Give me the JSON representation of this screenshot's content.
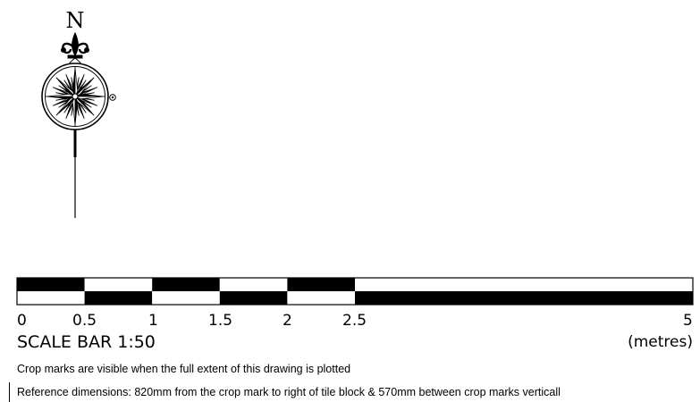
{
  "north_arrow": {
    "label": "N",
    "icon": "compass-rose-icon"
  },
  "scale_bar": {
    "title": "SCALE BAR 1:50",
    "units": "(metres)",
    "ticks": [
      "0",
      "0.5",
      "1",
      "1.5",
      "2",
      "2.5",
      "5"
    ],
    "colors": {
      "fill": "#000000",
      "background": "#ffffff"
    }
  },
  "notes": {
    "crop_visibility": "Crop marks are visible when the full extent of this drawing is plotted",
    "reference_dimensions": "Reference dimensions: 820mm from the crop mark to right of tile block & 570mm between crop marks verticall"
  }
}
